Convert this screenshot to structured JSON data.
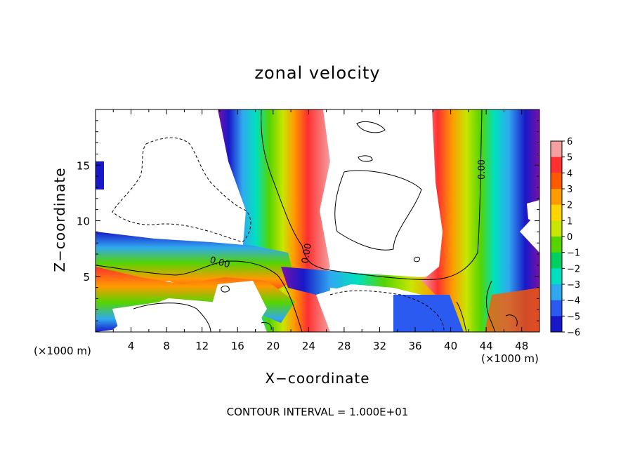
{
  "chart_data": {
    "type": "heatmap",
    "title": "zonal velocity",
    "xlabel": "X−coordinate",
    "ylabel": "Z−coordinate",
    "x_unit_left": "(×1000 m)",
    "x_unit_right": "(×1000 m)",
    "xlim": [
      0,
      50
    ],
    "ylim": [
      0,
      20
    ],
    "xticks": [
      4,
      8,
      12,
      16,
      20,
      24,
      28,
      32,
      36,
      40,
      44,
      48
    ],
    "xtick_labels": [
      "4",
      "8",
      "12",
      "16",
      "20",
      "24",
      "28",
      "32",
      "36",
      "40",
      "44",
      "48"
    ],
    "yticks": [
      5,
      10,
      15
    ],
    "ytick_labels": [
      "5",
      "10",
      "15"
    ],
    "colorbar": {
      "levels": [
        6,
        5,
        4,
        3,
        2,
        1,
        0,
        -1,
        -2,
        -3,
        -4,
        -5,
        -6
      ],
      "labels": [
        "6",
        "5",
        "4",
        "3",
        "2",
        "1",
        "0",
        "−1",
        "−2",
        "−3",
        "−4",
        "−5",
        "−6"
      ],
      "colors": [
        "#f4a0a0",
        "#ff3030",
        "#ff5a00",
        "#ff9a00",
        "#ffd400",
        "#c8e600",
        "#55d400",
        "#00d060",
        "#00e0c0",
        "#30a8f0",
        "#2a5af0",
        "#1818c8",
        "#7a10a8"
      ]
    },
    "contour_labels": [
      "0.00",
      "0.00",
      "0.00"
    ],
    "grid": false
  },
  "footer": {
    "contour_interval": "CONTOUR INTERVAL = 1.000E+01"
  }
}
